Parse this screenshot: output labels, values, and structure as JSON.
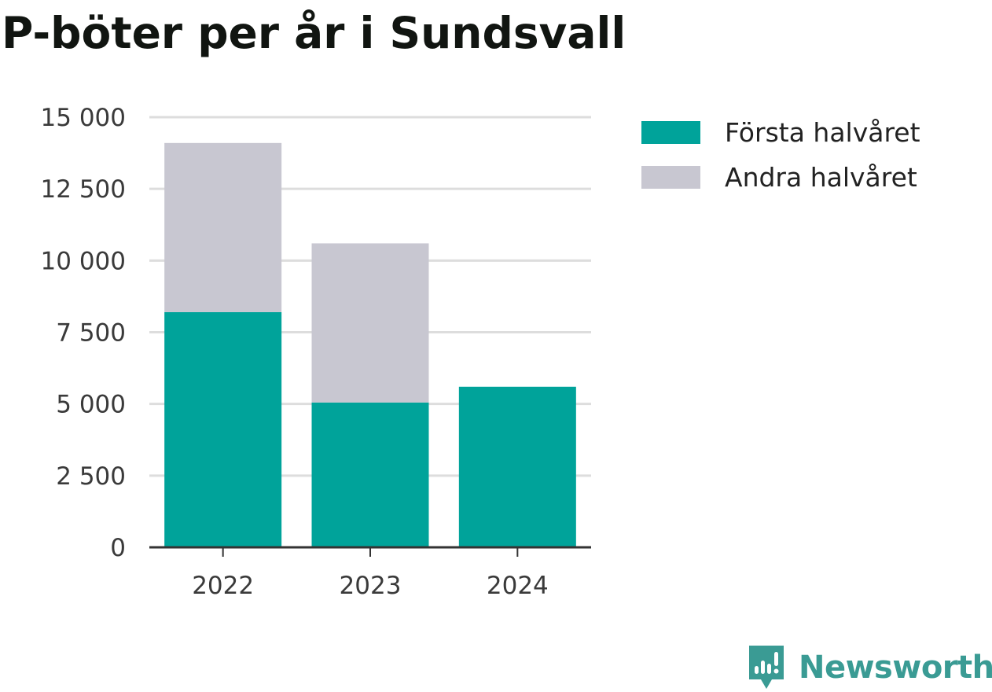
{
  "title": "P-böter per år i Sundsvall",
  "legend": {
    "items": [
      {
        "label": "Första halvåret",
        "color": "#00a39a"
      },
      {
        "label": "Andra halvåret",
        "color": "#c8c7d1"
      }
    ]
  },
  "brand": {
    "name": "Newsworthy",
    "icon": "newsworthy-logo-icon",
    "color": "#3a9b94"
  },
  "chart_data": {
    "type": "bar",
    "stacked": true,
    "categories": [
      "2022",
      "2023",
      "2024"
    ],
    "series": [
      {
        "name": "Första halvåret",
        "values": [
          8200,
          5050,
          5600
        ],
        "color": "#00a39a"
      },
      {
        "name": "Andra halvåret",
        "values": [
          5900,
          5550,
          0
        ],
        "color": "#c8c7d1"
      }
    ],
    "ylim": [
      0,
      15000
    ],
    "yticks": [
      0,
      2500,
      5000,
      7500,
      10000,
      12500,
      15000
    ],
    "ytick_labels": [
      "0",
      "2 500",
      "5 000",
      "7 500",
      "10 000",
      "12 500",
      "15 000"
    ],
    "xlabel": "",
    "ylabel": "",
    "grid": true,
    "legend_position": "top-right"
  }
}
